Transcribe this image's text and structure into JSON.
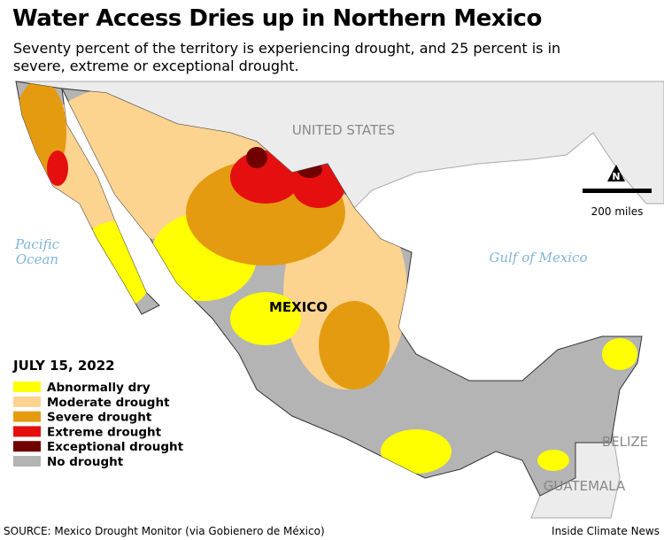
{
  "header": {
    "title": "Water Access Dries up in Northern Mexico",
    "subtitle": "Seventy percent of the territory is experiencing drought, and 25 percent is in severe, extreme or exceptional drought."
  },
  "map": {
    "labels": [
      {
        "name": "united-states",
        "lines": [
          "UNITED STATES"
        ]
      },
      {
        "name": "pacific-ocean",
        "lines": [
          "Pacific",
          "Ocean"
        ]
      },
      {
        "name": "gulf-of-mexico",
        "lines": [
          "Gulf of Mexico"
        ]
      },
      {
        "name": "mexico",
        "lines": [
          "MEXICO"
        ]
      },
      {
        "name": "belize",
        "lines": [
          "BELIZE"
        ]
      },
      {
        "name": "guatemala",
        "lines": [
          "GUATEMALA"
        ]
      }
    ]
  },
  "scale": {
    "label": "200 miles"
  },
  "legend": {
    "title": "JULY 15, 2022",
    "items": [
      {
        "label": "Abnormally dry",
        "color": "#ffff00"
      },
      {
        "label": "Moderate drought",
        "color": "#fcd38f"
      },
      {
        "label": "Severe drought",
        "color": "#e49b10"
      },
      {
        "label": "Extreme drought",
        "color": "#e50f0f"
      },
      {
        "label": "Exceptional drought",
        "color": "#710000"
      },
      {
        "label": "No drought",
        "color": "#b4b4b4"
      }
    ]
  },
  "footer": {
    "source": "SOURCE: Mexico Drought Monitor (via Gobienero de México)",
    "credit": "Inside Climate News"
  }
}
